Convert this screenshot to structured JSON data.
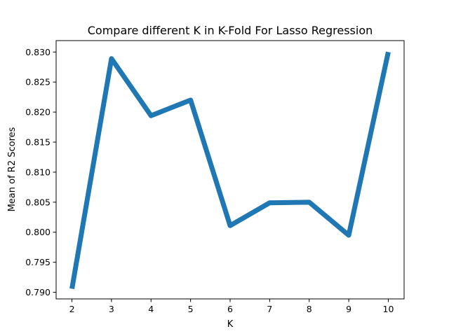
{
  "chart_data": {
    "type": "line",
    "title": "Compare different K in K-Fold For Lasso Regression",
    "xlabel": "K",
    "ylabel": "Mean of R2 Scores",
    "x": [
      2,
      3,
      4,
      5,
      6,
      7,
      8,
      9,
      10
    ],
    "series": [
      {
        "values": [
          0.7906,
          0.8289,
          0.8194,
          0.822,
          0.8011,
          0.8049,
          0.805,
          0.7995,
          0.83
        ],
        "color": "#1f77b4"
      }
    ],
    "xlim": [
      1.6,
      10.4
    ],
    "ylim": [
      0.7889,
      0.8319
    ],
    "xticks": [
      2,
      3,
      4,
      5,
      6,
      7,
      8,
      9,
      10
    ],
    "yticks": [
      0.79,
      0.795,
      0.8,
      0.805,
      0.81,
      0.815,
      0.82,
      0.825,
      0.83
    ],
    "ytick_labels": [
      "0.790",
      "0.795",
      "0.800",
      "0.805",
      "0.810",
      "0.815",
      "0.820",
      "0.825",
      "0.830"
    ],
    "grid": false,
    "legend": false
  }
}
